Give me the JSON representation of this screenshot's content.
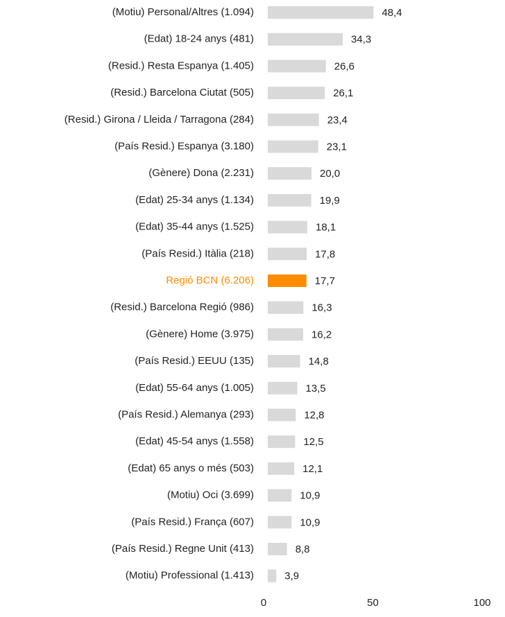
{
  "chart_data": {
    "type": "hbar",
    "categories": [
      "(Motiu) Personal/Altres (1.094)",
      "(Edat) 18-24 anys (481)",
      "(Resid.) Resta Espanya (1.405)",
      "(Resid.) Barcelona Ciutat (505)",
      "(Resid.) Girona / Lleida / Tarragona (284)",
      "(País Resid.) Espanya (3.180)",
      "(Gènere) Dona (2.231)",
      "(Edat) 25-34 anys  (1.134)",
      "(Edat) 35-44 anys (1.525)",
      "(País Resid.) Itàlia (218)",
      "Regió BCN (6.206)",
      "(Resid.) Barcelona Regió (986)",
      "(Gènere) Home (3.975)",
      "(País Resid.) EEUU (135)",
      "(Edat) 55-64 anys (1.005)",
      "(País Resid.) Alemanya (293)",
      "(Edat) 45-54 anys (1.558)",
      "(Edat) 65 anys o més (503)",
      "(Motiu) Oci (3.699)",
      "(País Resid.) França (607)",
      "(País Resid.) Regne Unit (413)",
      "(Motiu) Professional (1.413)"
    ],
    "values": [
      48.4,
      34.3,
      26.6,
      26.1,
      23.4,
      23.1,
      20.0,
      19.9,
      18.1,
      17.8,
      17.7,
      16.3,
      16.2,
      14.8,
      13.5,
      12.8,
      12.5,
      12.1,
      10.9,
      10.9,
      8.8,
      3.9
    ],
    "value_labels": [
      "48,4",
      "34,3",
      "26,6",
      "26,1",
      "23,4",
      "23,1",
      "20,0",
      "19,9",
      "18,1",
      "17,8",
      "17,7",
      "16,3",
      "16,2",
      "14,8",
      "13,5",
      "12,8",
      "12,5",
      "12,1",
      "10,9",
      "10,9",
      "8,8",
      "3,9"
    ],
    "color": "#d9d9d9",
    "colors": [
      "#d9d9d9",
      "#d9d9d9",
      "#d9d9d9",
      "#d9d9d9",
      "#d9d9d9",
      "#d9d9d9",
      "#d9d9d9",
      "#d9d9d9",
      "#d9d9d9",
      "#d9d9d9",
      "#ff8c00",
      "#d9d9d9",
      "#d9d9d9",
      "#d9d9d9",
      "#d9d9d9",
      "#d9d9d9",
      "#d9d9d9",
      "#d9d9d9",
      "#d9d9d9",
      "#d9d9d9",
      "#d9d9d9",
      "#d9d9d9"
    ],
    "xlim": [
      0,
      100
    ],
    "xticks": [
      0,
      50,
      100
    ],
    "grid": false
  }
}
